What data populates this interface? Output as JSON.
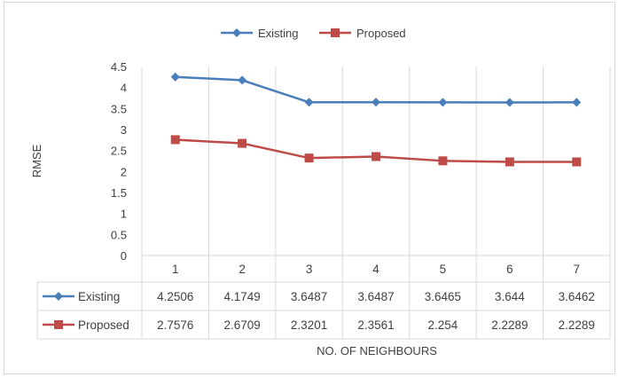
{
  "chart_data": {
    "type": "line",
    "title": "",
    "xlabel": "NO. OF NEIGHBOURS",
    "ylabel": "RMSE",
    "ylim": [
      0,
      4.5
    ],
    "ytick_step": 0.5,
    "y_ticks": [
      "0",
      "0.5",
      "1",
      "1.5",
      "2",
      "2.5",
      "3",
      "3.5",
      "4",
      "4.5"
    ],
    "categories": [
      "1",
      "2",
      "3",
      "4",
      "5",
      "6",
      "7"
    ],
    "legend_position": "top",
    "grid": "vertical category lines",
    "data_table": true,
    "series": [
      {
        "name": "Existing",
        "color": "#4a7ebb",
        "marker": "diamond",
        "values": [
          4.2506,
          4.1749,
          3.6487,
          3.6487,
          3.6465,
          3.644,
          3.6462
        ],
        "labels": [
          "4.2506",
          "4.1749",
          "3.6487",
          "3.6487",
          "3.6465",
          "3.644",
          "3.6462"
        ]
      },
      {
        "name": "Proposed",
        "color": "#be4b48",
        "marker": "square",
        "values": [
          2.7576,
          2.6709,
          2.3201,
          2.3561,
          2.254,
          2.2289,
          2.2289
        ],
        "labels": [
          "2.7576",
          "2.6709",
          "2.3201",
          "2.3561",
          "2.254",
          "2.2289",
          "2.2289"
        ]
      }
    ]
  }
}
